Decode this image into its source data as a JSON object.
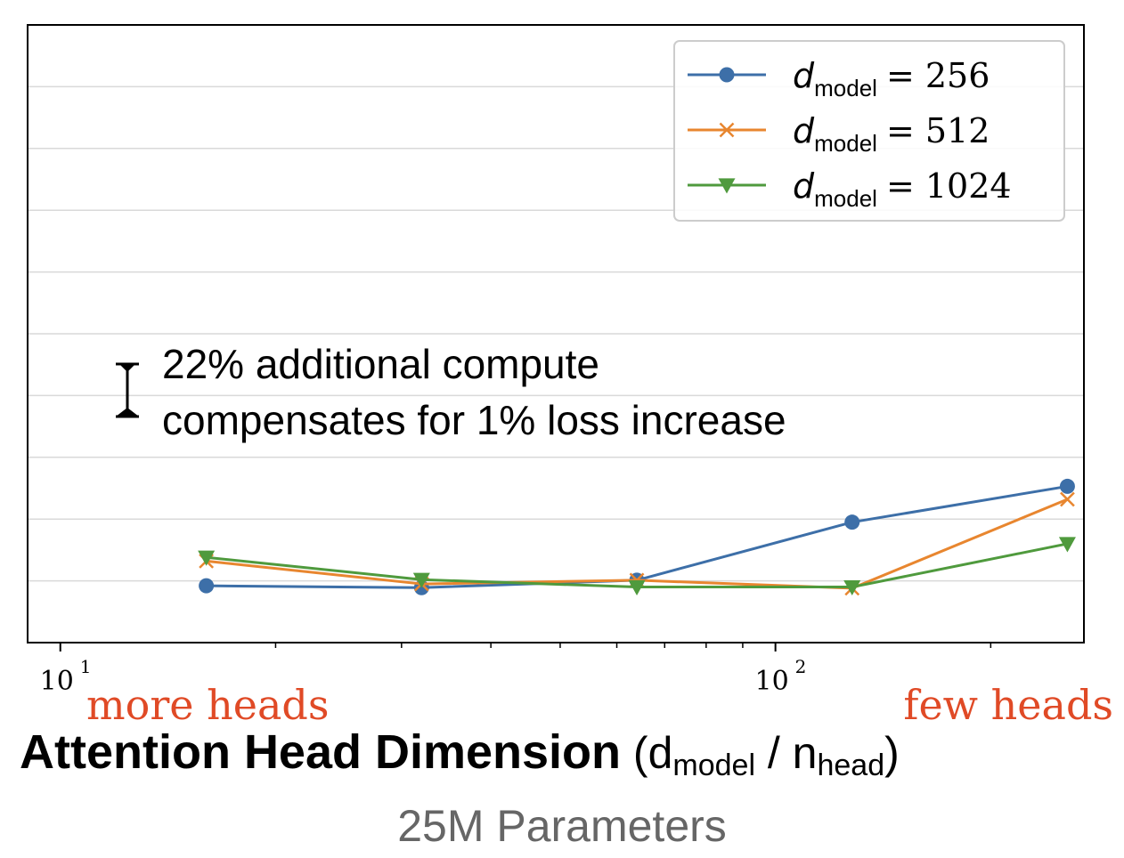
{
  "chart_data": {
    "type": "line",
    "xscale": "log",
    "xlim": [
      9,
      270
    ],
    "ylim": [
      0,
      1
    ],
    "x": [
      16,
      32,
      64,
      128,
      256
    ],
    "series": [
      {
        "name_d": "d",
        "name_sub": "model",
        "name_val": "= 256",
        "color": "#3d6fa8",
        "marker": "circle",
        "values": [
          0.092,
          0.089,
          0.101,
          0.195,
          0.253
        ]
      },
      {
        "name_d": "d",
        "name_sub": "model",
        "name_val": "= 512",
        "color": "#e8862f",
        "marker": "x",
        "values": [
          0.132,
          0.095,
          0.101,
          0.088,
          0.232
        ]
      },
      {
        "name_d": "d",
        "name_sub": "model",
        "name_val": "= 1024",
        "color": "#4f9a3d",
        "marker": "triangle-down",
        "values": [
          0.138,
          0.102,
          0.09,
          0.09,
          0.16
        ]
      }
    ],
    "yticks_count": 10,
    "grid": "horizontal",
    "legend_position": "top-right",
    "xtick_labels": [
      {
        "value": 10,
        "base": "10",
        "exp": "1"
      },
      {
        "value": 100,
        "base": "10",
        "exp": "2"
      }
    ],
    "annotation": {
      "line1": "22% additional compute",
      "line2": "compensates for 1% loss increase"
    },
    "left_label": "more heads",
    "right_label": "few heads",
    "xlabel": {
      "bold": "Attention Head Dimension",
      "open": " (d",
      "sub1": "model",
      "mid": " / n",
      "sub2": "head",
      "close": ")"
    },
    "subtitle": "25M Parameters"
  }
}
